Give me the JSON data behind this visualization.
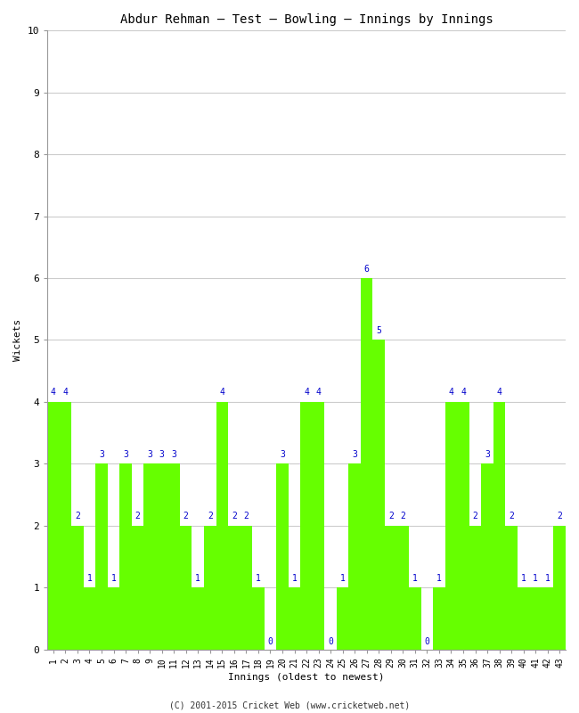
{
  "title": "Abdur Rehman – Test – Bowling – Innings by Innings",
  "xlabel": "Innings (oldest to newest)",
  "ylabel": "Wickets",
  "ylim": [
    0,
    10
  ],
  "yticks": [
    0,
    1,
    2,
    3,
    4,
    5,
    6,
    7,
    8,
    9,
    10
  ],
  "bar_color": "#66FF00",
  "bar_edge_color": "#66FF00",
  "background_color": "#ffffff",
  "footer": "(C) 2001-2015 Cricket Web (www.cricketweb.net)",
  "title_color": "#000000",
  "label_color": "#0000CC",
  "innings": [
    1,
    2,
    3,
    4,
    5,
    6,
    7,
    8,
    9,
    10,
    11,
    12,
    13,
    14,
    15,
    16,
    17,
    18,
    19,
    20,
    21,
    22,
    23,
    24,
    25,
    26,
    27,
    28,
    29,
    30,
    31,
    32,
    33,
    34,
    35,
    36,
    37,
    38,
    39,
    40,
    41,
    42,
    43
  ],
  "wickets": [
    4,
    4,
    2,
    1,
    3,
    1,
    3,
    2,
    3,
    3,
    3,
    2,
    1,
    2,
    4,
    2,
    2,
    1,
    0,
    3,
    1,
    4,
    4,
    0,
    1,
    3,
    6,
    5,
    2,
    2,
    1,
    0,
    1,
    4,
    4,
    2,
    3,
    4,
    2,
    1,
    1,
    1,
    2
  ],
  "grid_color": "#cccccc",
  "font_family": "monospace",
  "label_fontsize": 7,
  "tick_fontsize": 7,
  "ytick_fontsize": 8,
  "title_fontsize": 10,
  "axis_label_fontsize": 8,
  "footer_fontsize": 7
}
